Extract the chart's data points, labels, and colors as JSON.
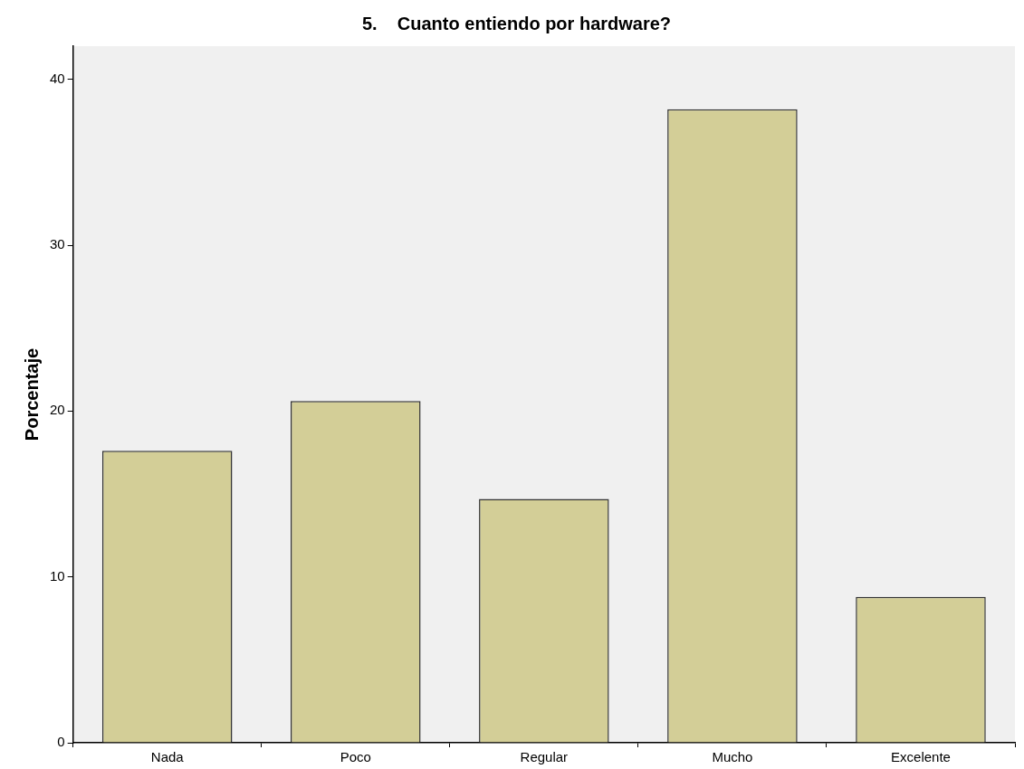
{
  "chart_data": {
    "type": "bar",
    "title": "5.    Cuanto entiendo por hardware?",
    "ylabel": "Porcentaje",
    "categories": [
      "Nada",
      "Poco",
      "Regular",
      "Mucho",
      "Excelente"
    ],
    "values": [
      17.6,
      20.6,
      14.7,
      38.2,
      8.8
    ],
    "color": "#d3ce97",
    "ylim": [
      0,
      42
    ],
    "yticks": [
      0,
      10,
      20,
      30,
      40
    ],
    "grid": false,
    "legend": false
  }
}
